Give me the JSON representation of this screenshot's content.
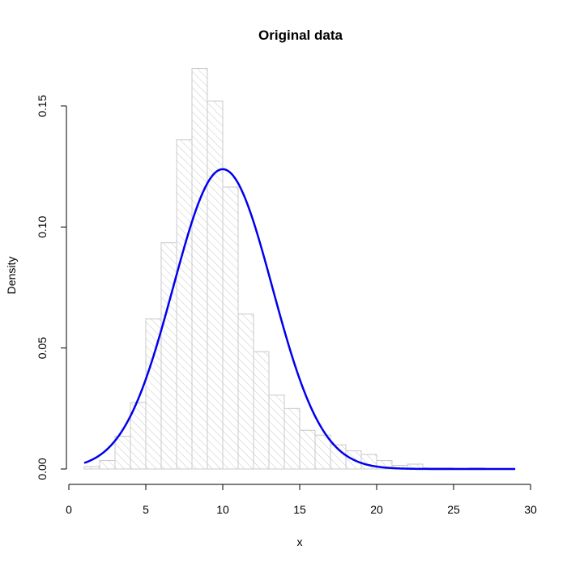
{
  "chart_data": {
    "type": "bar",
    "title": "Original data",
    "xlabel": "x",
    "ylabel": "Density",
    "xlim": [
      0,
      30
    ],
    "ylim": [
      0,
      0.16
    ],
    "x_ticks": [
      "0",
      "5",
      "10",
      "15",
      "20",
      "25",
      "30"
    ],
    "y_ticks": [
      "0.00",
      "0.05",
      "0.10",
      "0.15"
    ],
    "grid": false,
    "bin_width": 1,
    "bins": [
      {
        "start": 1,
        "end": 2,
        "density": 0.001
      },
      {
        "start": 2,
        "end": 3,
        "density": 0.0035
      },
      {
        "start": 3,
        "end": 4,
        "density": 0.0135
      },
      {
        "start": 4,
        "end": 5,
        "density": 0.0275
      },
      {
        "start": 5,
        "end": 6,
        "density": 0.062
      },
      {
        "start": 6,
        "end": 7,
        "density": 0.0935
      },
      {
        "start": 7,
        "end": 8,
        "density": 0.136
      },
      {
        "start": 8,
        "end": 9,
        "density": 0.1655
      },
      {
        "start": 9,
        "end": 10,
        "density": 0.152
      },
      {
        "start": 10,
        "end": 11,
        "density": 0.1165
      },
      {
        "start": 11,
        "end": 12,
        "density": 0.064
      },
      {
        "start": 12,
        "end": 13,
        "density": 0.0485
      },
      {
        "start": 13,
        "end": 14,
        "density": 0.0305
      },
      {
        "start": 14,
        "end": 15,
        "density": 0.025
      },
      {
        "start": 15,
        "end": 16,
        "density": 0.016
      },
      {
        "start": 16,
        "end": 17,
        "density": 0.014
      },
      {
        "start": 17,
        "end": 18,
        "density": 0.01
      },
      {
        "start": 18,
        "end": 19,
        "density": 0.0075
      },
      {
        "start": 19,
        "end": 20,
        "density": 0.006
      },
      {
        "start": 20,
        "end": 21,
        "density": 0.0035
      },
      {
        "start": 21,
        "end": 22,
        "density": 0.0015
      },
      {
        "start": 22,
        "end": 23,
        "density": 0.002
      },
      {
        "start": 23,
        "end": 24,
        "density": 0.0005
      },
      {
        "start": 24,
        "end": 25,
        "density": 0.0005
      },
      {
        "start": 25,
        "end": 26,
        "density": 0.0003
      },
      {
        "start": 26,
        "end": 27,
        "density": 0.0005
      },
      {
        "start": 27,
        "end": 28,
        "density": 0.0002
      },
      {
        "start": 28,
        "end": 29,
        "density": 0.0002
      }
    ],
    "curve": {
      "type": "normal-density",
      "mean": 10,
      "sd": 3.22,
      "x_range": [
        1,
        29
      ]
    },
    "colors": {
      "bar_border": "#c8c8c8",
      "bar_hatch": "#c8c8c8",
      "curve": "#0000ee",
      "axis": "#000000"
    }
  }
}
